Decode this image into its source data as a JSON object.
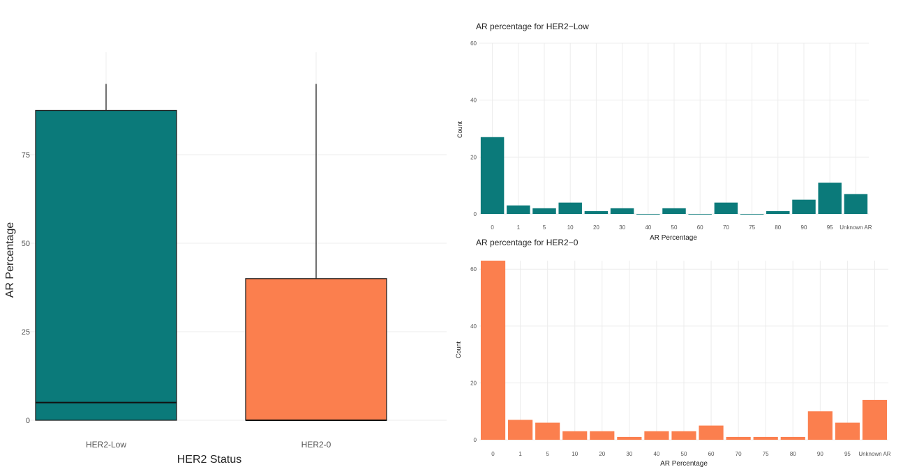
{
  "colors": {
    "teal": "#0b7a7a",
    "orange": "#fb7f4e",
    "grid": "#ececec",
    "text": "#222222",
    "tick": "#555555"
  },
  "chart_data": [
    {
      "type": "box",
      "title": "",
      "xlabel": "HER2 Status",
      "ylabel": "AR Percentage",
      "ylim": [
        0,
        100
      ],
      "yticks": [
        0,
        25,
        50,
        75
      ],
      "grid": true,
      "categories": [
        "HER2-Low",
        "HER2-0"
      ],
      "boxes": [
        {
          "category": "HER2-Low",
          "min": 0,
          "q1": 0,
          "median": 5,
          "q3": 87.5,
          "max": 95,
          "color": "#0b7a7a"
        },
        {
          "category": "HER2-0",
          "min": 0,
          "q1": 0,
          "median": 0,
          "q3": 40,
          "max": 95,
          "color": "#fb7f4e"
        }
      ]
    },
    {
      "type": "bar",
      "title": "AR percentage for HER2−Low",
      "xlabel": "AR Percentage",
      "ylabel": "Count",
      "ylim": [
        0,
        60
      ],
      "yticks": [
        0,
        20,
        40,
        60
      ],
      "grid": true,
      "color": "#0b7a7a",
      "categories": [
        "0",
        "1",
        "5",
        "10",
        "20",
        "30",
        "40",
        "50",
        "60",
        "70",
        "75",
        "80",
        "90",
        "95",
        "Unknown AR"
      ],
      "values": [
        27,
        3,
        2,
        4,
        1,
        2,
        0,
        2,
        0,
        4,
        0,
        1,
        5,
        11,
        7
      ]
    },
    {
      "type": "bar",
      "title": "AR percentage for HER2−0",
      "xlabel": "AR Percentage",
      "ylabel": "Count",
      "ylim": [
        0,
        63
      ],
      "yticks": [
        0,
        20,
        40,
        60
      ],
      "grid": true,
      "color": "#fb7f4e",
      "categories": [
        "0",
        "1",
        "5",
        "10",
        "20",
        "30",
        "40",
        "50",
        "60",
        "70",
        "75",
        "80",
        "90",
        "95",
        "Unknown AR"
      ],
      "values": [
        63,
        7,
        6,
        3,
        3,
        1,
        3,
        3,
        5,
        1,
        1,
        1,
        10,
        6,
        14
      ]
    }
  ]
}
